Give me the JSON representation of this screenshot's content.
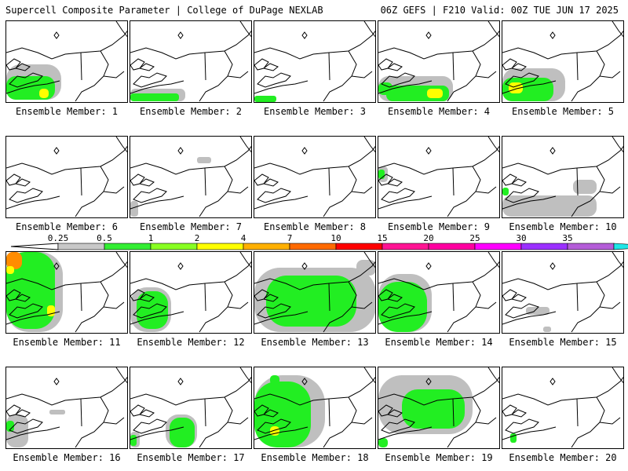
{
  "header": {
    "title_left": "Supercell Composite Parameter | College of DuPage NEXLAB",
    "title_right": "06Z GEFS | F210 Valid: 00Z TUE JUN 17 2025"
  },
  "panels": [
    {
      "label": "Ensemble Member: 1",
      "blobs": [
        {
          "c": "#bfbfbf",
          "x": 0,
          "y": 55,
          "w": 70,
          "h": 45
        },
        {
          "c": "#22ee22",
          "x": 0,
          "y": 70,
          "w": 62,
          "h": 30
        },
        {
          "c": "#ffff00",
          "x": 42,
          "y": 86,
          "w": 12,
          "h": 12
        }
      ]
    },
    {
      "label": "Ensemble Member: 2",
      "blobs": [
        {
          "c": "#bfbfbf",
          "x": 0,
          "y": 86,
          "w": 70,
          "h": 16
        },
        {
          "c": "#22ee22",
          "x": 0,
          "y": 92,
          "w": 62,
          "h": 10
        }
      ]
    },
    {
      "label": "Ensemble Member: 3",
      "blobs": [
        {
          "c": "#22ee22",
          "x": 0,
          "y": 95,
          "w": 28,
          "h": 8
        }
      ]
    },
    {
      "label": "Ensemble Member: 4",
      "blobs": [
        {
          "c": "#bfbfbf",
          "x": 0,
          "y": 70,
          "w": 95,
          "h": 32
        },
        {
          "c": "#22ee22",
          "x": 10,
          "y": 82,
          "w": 80,
          "h": 20
        },
        {
          "c": "#ffff00",
          "x": 62,
          "y": 86,
          "w": 20,
          "h": 12
        },
        {
          "c": "#22ee22",
          "x": 0,
          "y": 78,
          "w": 18,
          "h": 16
        }
      ]
    },
    {
      "label": "Ensemble Member: 5",
      "blobs": [
        {
          "c": "#bfbfbf",
          "x": 0,
          "y": 60,
          "w": 80,
          "h": 42
        },
        {
          "c": "#22ee22",
          "x": 0,
          "y": 72,
          "w": 65,
          "h": 30
        },
        {
          "c": "#ffff00",
          "x": 8,
          "y": 78,
          "w": 18,
          "h": 14
        }
      ]
    },
    {
      "label": "Ensemble Member: 6",
      "blobs": []
    },
    {
      "label": "Ensemble Member: 7",
      "blobs": [
        {
          "c": "#bfbfbf",
          "x": 0,
          "y": 82,
          "w": 10,
          "h": 20
        },
        {
          "c": "#bfbfbf",
          "x": 85,
          "y": 26,
          "w": 18,
          "h": 8
        }
      ]
    },
    {
      "label": "Ensemble Member: 8",
      "blobs": []
    },
    {
      "label": "Ensemble Member: 9",
      "blobs": [
        {
          "c": "#bfbfbf",
          "x": 0,
          "y": 38,
          "w": 12,
          "h": 20
        },
        {
          "c": "#22ee22",
          "x": 0,
          "y": 42,
          "w": 8,
          "h": 12
        }
      ]
    },
    {
      "label": "Ensemble Member: 10",
      "blobs": [
        {
          "c": "#bfbfbf",
          "x": 0,
          "y": 75,
          "w": 120,
          "h": 27
        },
        {
          "c": "#bfbfbf",
          "x": 90,
          "y": 55,
          "w": 30,
          "h": 18
        },
        {
          "c": "#22ee22",
          "x": 0,
          "y": 65,
          "w": 8,
          "h": 10
        }
      ]
    },
    {
      "label": "Ensemble Member: 11",
      "blobs": [
        {
          "c": "#bfbfbf",
          "x": 0,
          "y": 0,
          "w": 72,
          "h": 102
        },
        {
          "c": "#22ee22",
          "x": 0,
          "y": 0,
          "w": 62,
          "h": 98
        },
        {
          "c": "#ff8c00",
          "x": 0,
          "y": 0,
          "w": 20,
          "h": 22
        },
        {
          "c": "#ffff00",
          "x": 0,
          "y": 18,
          "w": 10,
          "h": 10
        },
        {
          "c": "#ffff00",
          "x": 52,
          "y": 68,
          "w": 10,
          "h": 14
        }
      ]
    },
    {
      "label": "Ensemble Member: 12",
      "blobs": [
        {
          "c": "#bfbfbf",
          "x": 0,
          "y": 45,
          "w": 52,
          "h": 57
        },
        {
          "c": "#22ee22",
          "x": 8,
          "y": 50,
          "w": 40,
          "h": 48
        }
      ]
    },
    {
      "label": "Ensemble Member: 13",
      "blobs": [
        {
          "c": "#bfbfbf",
          "x": 0,
          "y": 20,
          "w": 155,
          "h": 82
        },
        {
          "c": "#22ee22",
          "x": 15,
          "y": 30,
          "w": 115,
          "h": 65
        },
        {
          "c": "#bfbfbf",
          "x": 130,
          "y": 10,
          "w": 25,
          "h": 20
        }
      ]
    },
    {
      "label": "Ensemble Member: 14",
      "blobs": [
        {
          "c": "#bfbfbf",
          "x": 0,
          "y": 28,
          "w": 68,
          "h": 74
        },
        {
          "c": "#22ee22",
          "x": 0,
          "y": 38,
          "w": 62,
          "h": 64
        }
      ]
    },
    {
      "label": "Ensemble Member: 15",
      "blobs": [
        {
          "c": "#bfbfbf",
          "x": 30,
          "y": 70,
          "w": 30,
          "h": 10
        },
        {
          "c": "#bfbfbf",
          "x": 52,
          "y": 95,
          "w": 10,
          "h": 7
        }
      ]
    },
    {
      "label": "Ensemble Member: 16",
      "blobs": [
        {
          "c": "#bfbfbf",
          "x": 0,
          "y": 60,
          "w": 28,
          "h": 42
        },
        {
          "c": "#22ee22",
          "x": 0,
          "y": 68,
          "w": 10,
          "h": 14
        },
        {
          "c": "#bfbfbf",
          "x": 55,
          "y": 54,
          "w": 20,
          "h": 6
        }
      ]
    },
    {
      "label": "Ensemble Member: 17",
      "blobs": [
        {
          "c": "#bfbfbf",
          "x": 0,
          "y": 82,
          "w": 12,
          "h": 20
        },
        {
          "c": "#22ee22",
          "x": 0,
          "y": 86,
          "w": 8,
          "h": 14
        },
        {
          "c": "#bfbfbf",
          "x": 45,
          "y": 60,
          "w": 40,
          "h": 42
        },
        {
          "c": "#22ee22",
          "x": 50,
          "y": 64,
          "w": 32,
          "h": 38
        }
      ]
    },
    {
      "label": "Ensemble Member: 18",
      "blobs": [
        {
          "c": "#bfbfbf",
          "x": 0,
          "y": 10,
          "w": 90,
          "h": 92
        },
        {
          "c": "#22ee22",
          "x": 0,
          "y": 18,
          "w": 72,
          "h": 84
        },
        {
          "c": "#ffff00",
          "x": 20,
          "y": 75,
          "w": 12,
          "h": 12
        },
        {
          "c": "#22ee22",
          "x": 20,
          "y": 10,
          "w": 12,
          "h": 12
        }
      ]
    },
    {
      "label": "Ensemble Member: 19",
      "blobs": [
        {
          "c": "#bfbfbf",
          "x": 0,
          "y": 10,
          "w": 120,
          "h": 75
        },
        {
          "c": "#22ee22",
          "x": 30,
          "y": 28,
          "w": 80,
          "h": 50
        },
        {
          "c": "#22ee22",
          "x": 0,
          "y": 90,
          "w": 12,
          "h": 12
        }
      ]
    },
    {
      "label": "Ensemble Member: 20",
      "blobs": [
        {
          "c": "#22ee22",
          "x": 10,
          "y": 84,
          "w": 8,
          "h": 12
        }
      ]
    }
  ],
  "colorbar": {
    "ticks": [
      "0.25",
      "0.5",
      "1",
      "2",
      "4",
      "7",
      "10",
      "15",
      "20",
      "25",
      "30",
      "35"
    ],
    "colors": [
      "#c8c8c8",
      "#33ee33",
      "#88ff22",
      "#ffff00",
      "#ffb000",
      "#ff6a00",
      "#ff0000",
      "#ff1493",
      "#ff00a0",
      "#ff00ff",
      "#9b30ff",
      "#b45dd8",
      "#1ee6e6"
    ]
  }
}
